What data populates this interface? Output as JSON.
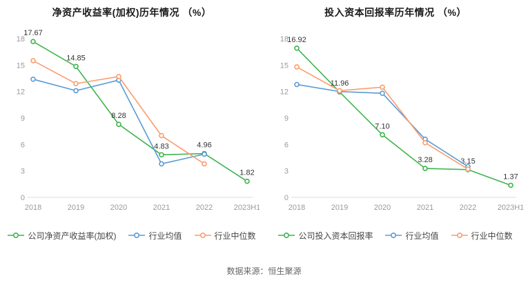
{
  "footer": {
    "source_text": "数据来源：恒生聚源"
  },
  "chart_data": [
    {
      "type": "line",
      "title": "净资产收益率(加权)历年情况 （%）",
      "categories": [
        "2018",
        "2019",
        "2020",
        "2021",
        "2022",
        "2023H1"
      ],
      "ylim": [
        0,
        18
      ],
      "yticks": [
        0,
        3,
        6,
        9,
        12,
        15,
        18
      ],
      "grid": false,
      "legend_position": "bottom",
      "series": [
        {
          "name": "公司净资产收益率(加权)",
          "color": "#3cb44b",
          "values": [
            17.67,
            14.85,
            8.28,
            4.83,
            4.96,
            1.82
          ],
          "labels": [
            "17.67",
            "14.85",
            "8.28",
            "4.83",
            "4.96",
            "1.82"
          ]
        },
        {
          "name": "行业均值",
          "color": "#5a9bd5",
          "values": [
            13.4,
            12.1,
            13.3,
            3.8,
            4.9,
            null
          ]
        },
        {
          "name": "行业中位数",
          "color": "#fb9c6c",
          "values": [
            15.5,
            12.9,
            13.7,
            7.0,
            3.8,
            null
          ]
        }
      ]
    },
    {
      "type": "line",
      "title": "投入资本回报率历年情况 （%）",
      "categories": [
        "2018",
        "2019",
        "2020",
        "2021",
        "2022",
        "2023H1"
      ],
      "ylim": [
        0,
        18
      ],
      "yticks": [
        0,
        3,
        6,
        9,
        12,
        15,
        18
      ],
      "grid": false,
      "legend_position": "bottom",
      "series": [
        {
          "name": "公司投入资本回报率",
          "color": "#3cb44b",
          "values": [
            16.92,
            11.96,
            7.1,
            3.28,
            3.15,
            1.37
          ],
          "labels": [
            "16.92",
            "11.96",
            "7.10",
            "3.28",
            "3.15",
            "1.37"
          ]
        },
        {
          "name": "行业均值",
          "color": "#5a9bd5",
          "values": [
            12.8,
            12.0,
            11.8,
            6.6,
            3.5,
            null
          ]
        },
        {
          "name": "行业中位数",
          "color": "#fb9c6c",
          "values": [
            14.8,
            12.1,
            12.5,
            6.2,
            3.2,
            null
          ]
        }
      ]
    }
  ]
}
